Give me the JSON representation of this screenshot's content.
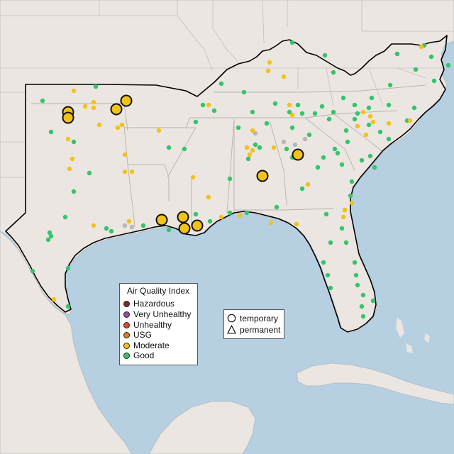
{
  "legend": {
    "title": "Air Quality Index",
    "items": [
      {
        "label": "Hazardous",
        "color": "#7e2a2a",
        "icon": "hazardous-dot"
      },
      {
        "label": "Very Unhealthy",
        "color": "#8e4fb0",
        "icon": "very-unhealthy-dot"
      },
      {
        "label": "Unhealthy",
        "color": "#e04a32",
        "icon": "unhealthy-dot"
      },
      {
        "label": "USG",
        "color": "#e07b22",
        "icon": "usg-dot"
      },
      {
        "label": "Moderate",
        "color": "#f2c218",
        "icon": "moderate-dot"
      },
      {
        "label": "Good",
        "color": "#34c46a",
        "icon": "good-dot"
      }
    ]
  },
  "monitor_types": [
    {
      "label": "temporary",
      "icon": "circle-outline-icon"
    },
    {
      "label": "permanent",
      "icon": "triangle-outline-icon"
    }
  ],
  "colors": {
    "land": "#ebe6e1",
    "water": "#b6d0e2",
    "region_outline": "#000000",
    "state_border": "#bdb8b2",
    "moderate": "#f2c218",
    "good": "#34c46a",
    "no_data": "#b8b8b8"
  },
  "map_style": "light-gray basemap with state borders; region outlined in black; small dots for permanent monitors, large outlined circles for temporary monitors"
}
